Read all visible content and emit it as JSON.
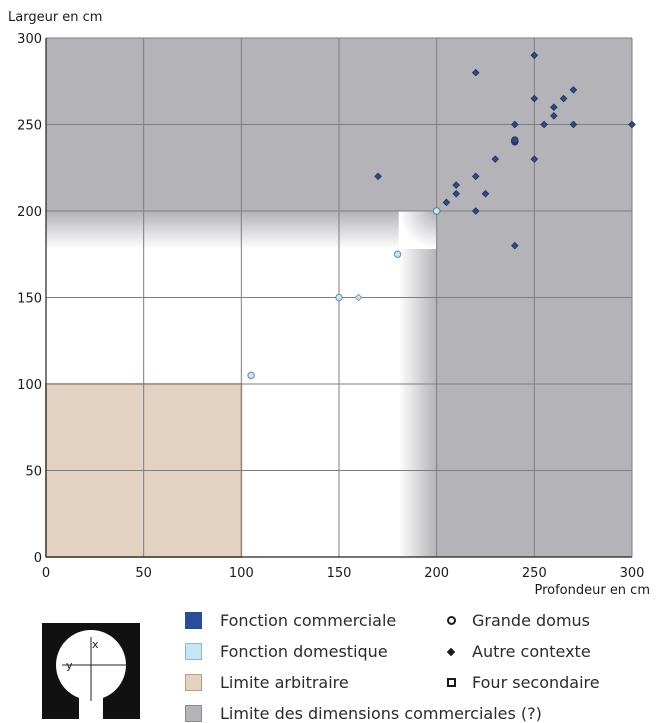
{
  "chart_data": {
    "type": "scatter",
    "xlabel": "Profondeur en cm",
    "ylabel": "Largeur en cm",
    "xlim": [
      0,
      300
    ],
    "ylim": [
      0,
      300
    ],
    "x_ticks": [
      0,
      50,
      100,
      150,
      200,
      250,
      300
    ],
    "y_ticks": [
      0,
      50,
      100,
      150,
      200,
      250,
      300
    ],
    "grid": true,
    "regions": [
      {
        "name": "Limite des dimensions commerciales (?)",
        "color": "#b3b3b8",
        "x_from": 200,
        "y_from": 200
      },
      {
        "name": "Limite arbitraire",
        "color": "#e3d2c1",
        "border": "#d9b494",
        "x": [
          0,
          100
        ],
        "y": [
          0,
          100
        ]
      }
    ],
    "series": [
      {
        "name": "Fonction commerciale",
        "color": "#2f4b8a",
        "marker": "diamond",
        "points": [
          [
            170,
            220
          ],
          [
            220,
            280
          ],
          [
            250,
            290
          ],
          [
            200,
            200
          ],
          [
            205,
            205
          ],
          [
            210,
            210
          ],
          [
            210,
            215
          ],
          [
            220,
            200
          ],
          [
            220,
            220
          ],
          [
            225,
            210
          ],
          [
            230,
            230
          ],
          [
            240,
            180
          ],
          [
            240,
            240
          ],
          [
            240,
            250
          ],
          [
            250,
            230
          ],
          [
            250,
            265
          ],
          [
            255,
            250
          ],
          [
            260,
            255
          ],
          [
            260,
            260
          ],
          [
            265,
            265
          ],
          [
            270,
            250
          ],
          [
            270,
            270
          ],
          [
            300,
            250
          ]
        ]
      },
      {
        "name": "Fonction commerciale",
        "color": "#2f4b8a",
        "marker": "circle",
        "points": [
          [
            200,
            200
          ],
          [
            240,
            240
          ],
          [
            240,
            241
          ]
        ]
      },
      {
        "name": "Fonction domestique",
        "color": "#c7e6f5",
        "marker": "circle",
        "points": [
          [
            105,
            105
          ],
          [
            150,
            150
          ],
          [
            180,
            175
          ],
          [
            200,
            200
          ]
        ]
      },
      {
        "name": "Fonction domestique",
        "color": "#c7e6f5",
        "marker": "diamond",
        "points": [
          [
            160,
            150
          ]
        ]
      }
    ]
  },
  "legend": {
    "items": [
      {
        "label": "Fonction commerciale",
        "color": "#2b4c9b",
        "border": "#2b4c9b"
      },
      {
        "label": "Fonction domestique",
        "color": "#c7e6f5",
        "border": "#8fb8cc"
      },
      {
        "label": "Limite arbitraire",
        "color": "#e3d2c1",
        "border": "#b89f8a"
      },
      {
        "label": "Limite des dimensions commerciales (?)",
        "color": "#b3b3b8",
        "border": "#8a8a90"
      }
    ],
    "symbols": [
      {
        "label": "Grande domus",
        "icon": "circle"
      },
      {
        "label": "Autre contexte",
        "icon": "diamond"
      },
      {
        "label": "Four secondaire",
        "icon": "square"
      }
    ]
  },
  "diagram": {
    "x_label": "x",
    "y_label": "y"
  }
}
